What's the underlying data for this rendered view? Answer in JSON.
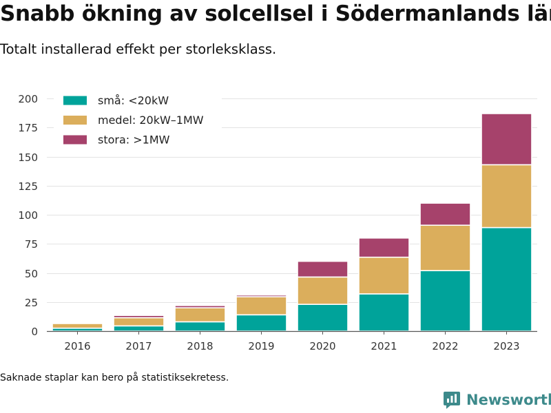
{
  "header": {
    "title": "Snabb ökning av solcellsel i Södermanlands län",
    "subtitle": "Totalt installerad effekt per storleksklass."
  },
  "footer": {
    "note": "Saknade staplar kan bero på statistiksekretess.",
    "brand": "Newsworthy"
  },
  "colors": {
    "small": "#00a39a",
    "medium": "#dbae5c",
    "large": "#a6426b",
    "brand": "#3d8a8b"
  },
  "chart_data": {
    "type": "bar",
    "stacked": true,
    "categories": [
      "2016",
      "2017",
      "2018",
      "2019",
      "2020",
      "2021",
      "2022",
      "2023"
    ],
    "series": [
      {
        "name": "små: <20kW",
        "values": [
          2.5,
          4.5,
          8,
          14,
          23,
          32,
          52,
          89
        ]
      },
      {
        "name": "medel: 20kW–1MW",
        "values": [
          4,
          7,
          12,
          15.5,
          23.5,
          31.5,
          39,
          54
        ]
      },
      {
        "name": "stora: >1MW",
        "values": [
          0,
          2,
          2,
          1.5,
          13.5,
          16.5,
          19,
          44
        ]
      }
    ],
    "ylim": [
      0,
      200
    ],
    "yticks": [
      "0",
      "25",
      "50",
      "75",
      "100",
      "125",
      "150",
      "175",
      "200"
    ],
    "xlabel": "",
    "ylabel": "",
    "grid": true,
    "legend_position": "top-left"
  }
}
